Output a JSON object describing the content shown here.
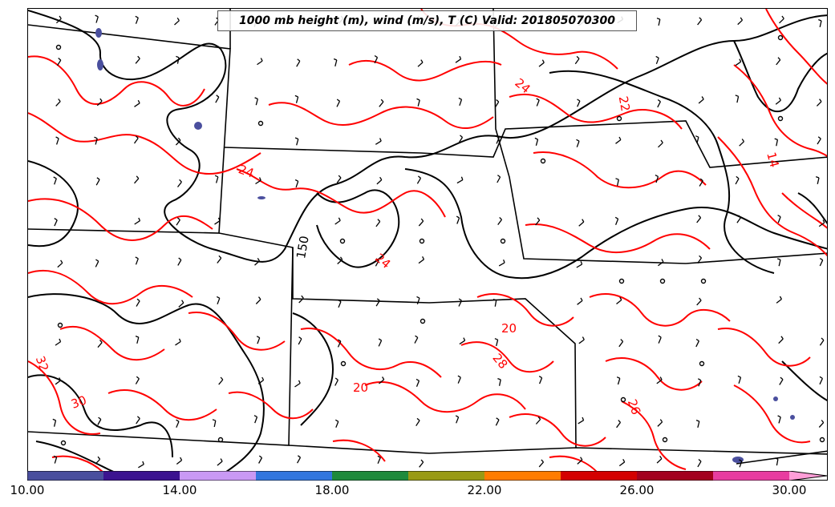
{
  "title": "1000 mb height (m), wind (m/s), T (C) Valid: 201805070300",
  "colors": {
    "temperature_contour": "#ff0000",
    "height_contour": "#000000",
    "boundary": "#000000"
  },
  "contour_labels": {
    "temperature": [
      "24",
      "22",
      "14",
      "24",
      "24",
      "20",
      "28",
      "32",
      "30",
      "26",
      "20"
    ],
    "height": [
      "150"
    ]
  },
  "colorbar": {
    "min": 10,
    "max": 30,
    "tick_labels": [
      "10.00",
      "14.00",
      "18.00",
      "22.00",
      "26.00",
      "30.00"
    ],
    "bins": [
      {
        "from": 10,
        "to": 12,
        "color": "#4a4f9e"
      },
      {
        "from": 12,
        "to": 14,
        "color": "#3c1390"
      },
      {
        "from": 14,
        "to": 16,
        "color": "#c999f4"
      },
      {
        "from": 16,
        "to": 18,
        "color": "#3276de"
      },
      {
        "from": 18,
        "to": 20,
        "color": "#1e8a3c"
      },
      {
        "from": 20,
        "to": 22,
        "color": "#999a14"
      },
      {
        "from": 22,
        "to": 24,
        "color": "#ff7c00"
      },
      {
        "from": 24,
        "to": 26,
        "color": "#d40000"
      },
      {
        "from": 26,
        "to": 28,
        "color": "#a3001e"
      },
      {
        "from": 28,
        "to": 30,
        "color": "#e83ca0"
      },
      {
        "from": 30,
        "to": 31,
        "color": "#ff9ed8"
      }
    ]
  }
}
